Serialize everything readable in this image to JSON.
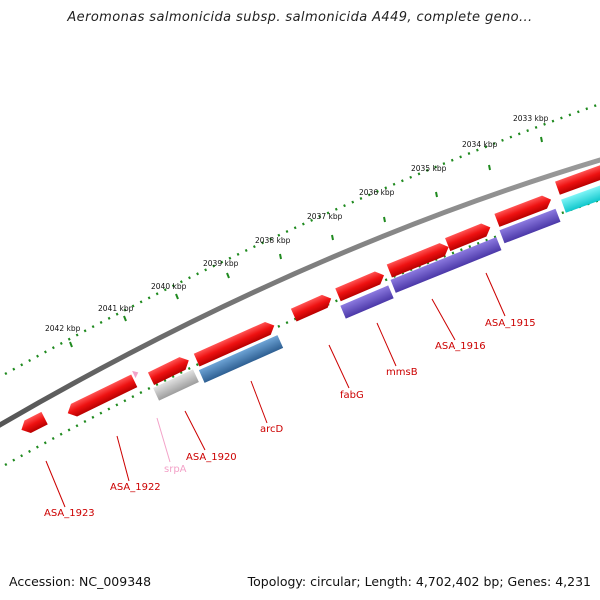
{
  "title": "Aeromonas salmonicida subsp. salmonicida A449, complete geno...",
  "footer": {
    "accession": "Accession: NC_009348",
    "summary": "Topology: circular; Length: 4,702,402 bp; Genes: 4,231"
  },
  "scale_labels": [
    "2033 kbp",
    "2034 kbp",
    "2035 kbp",
    "2036 kbp",
    "2037 kbp",
    "2038 kbp",
    "2039 kbp",
    "2040 kbp",
    "2041 kbp",
    "2042 kbp"
  ],
  "gene_labels": [
    "ASA_1915",
    "ASA_1916",
    "mmsB",
    "fabG",
    "arcD",
    "ASA_1920",
    "srpA",
    "ASA_1922",
    "ASA_1923"
  ],
  "colors": {
    "backbone": "#7a7a7a",
    "scale_dots": "#1f8a1f",
    "forward_gene": "#ee1111",
    "reverse_gene": "#ee1111",
    "protein_blue": "#3d79b0",
    "protein_purple": "#6a55c8",
    "protein_cyan": "#18e6ea",
    "protein_gray": "#bdbdbd",
    "label_red": "#cc0000",
    "label_pink": "#f3a2c8"
  }
}
